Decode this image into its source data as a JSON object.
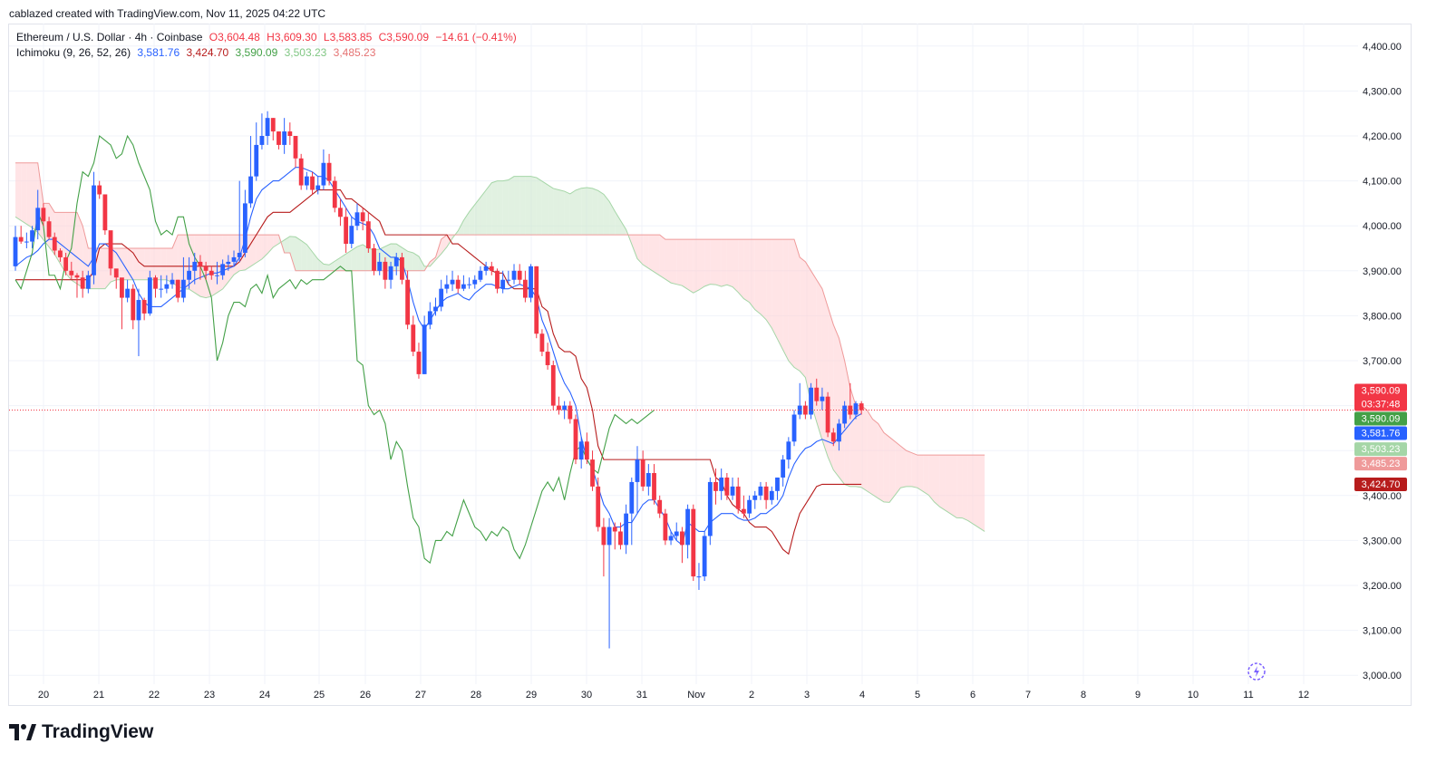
{
  "header": {
    "publish_line": "cablazed created with TradingView.com, Nov 11, 2025 04:22 UTC"
  },
  "legend": {
    "symbol": "Ethereum / U.S. Dollar · 4h · Coinbase",
    "open": "O3,604.48",
    "high": "H3,609.30",
    "low": "L3,583.85",
    "close": "C3,590.09",
    "change": "−14.61 (−0.41%)",
    "indicator": "Ichimoku (9, 26, 52, 26)",
    "conversion": "3,581.76",
    "base": "3,424.70",
    "lagging": "3,590.09",
    "span_a": "3,503.23",
    "span_b": "3,485.23"
  },
  "brand": {
    "name": "TradingView"
  },
  "colors": {
    "up": "#2962ff",
    "down": "#f23645",
    "conversion": "#2962ff",
    "base": "#b71c1c",
    "lagging": "#43a047",
    "span_a": "#a5d6a7",
    "span_b": "#ef9a9a",
    "cloud_bull": "#c8e6c9",
    "cloud_bear": "#ffcdd2"
  },
  "chart_data": {
    "type": "candlestick",
    "title": "Ethereum / U.S. Dollar · 4h · Coinbase",
    "ylim": [
      2950,
      4450
    ],
    "y_ticks": [
      3000,
      3100,
      3200,
      3300,
      3400,
      3500,
      3600,
      3700,
      3800,
      3900,
      4000,
      4100,
      4200,
      4300,
      4400
    ],
    "y_tick_labels": [
      "3,000.00",
      "3,100.00",
      "3,200.00",
      "3,300.00",
      "3,400.00",
      "3,500.00",
      "3,600.00",
      "3,700.00",
      "3,800.00",
      "3,900.00",
      "4,000.00",
      "4,100.00",
      "4,200.00",
      "4,300.00",
      "4,400.00"
    ],
    "x_labels": [
      "20",
      "21",
      "22",
      "23",
      "24",
      "25",
      "26",
      "27",
      "28",
      "29",
      "30",
      "31",
      "Nov",
      "2",
      "3",
      "4",
      "5",
      "6",
      "7",
      "8",
      "9",
      "10",
      "11",
      "12"
    ],
    "candle_open": [
      3910,
      3975,
      3965,
      3965,
      3990,
      4040,
      4010,
      3975,
      3945,
      3930,
      3900,
      3890,
      3885,
      3860,
      3890,
      4090,
      4070,
      3990,
      3905,
      3885,
      3840,
      3860,
      3790,
      3835,
      3805,
      3885,
      3860,
      3860,
      3870,
      3880,
      3840,
      3880,
      3900,
      3920,
      3910,
      3900,
      3890,
      3890,
      3915,
      3920,
      3930,
      3940,
      4050,
      4110,
      4180,
      4200,
      4240,
      4210,
      4180,
      4210,
      4200,
      4150,
      4090,
      4110,
      4080,
      4090,
      4140,
      4100,
      4040,
      4020,
      3960,
      4000,
      4030,
      4010,
      3950,
      3900,
      3920,
      3880,
      3910,
      3930,
      3880,
      3780,
      3720,
      3670,
      3780,
      3810,
      3820,
      3860,
      3870,
      3880,
      3860,
      3870,
      3870,
      3880,
      3900,
      3910,
      3900,
      3860,
      3880,
      3880,
      3900,
      3880,
      3840,
      3910,
      3760,
      3720,
      3690,
      3600,
      3590,
      3600,
      3570,
      3480,
      3520,
      3480,
      3420,
      3330,
      3290,
      3330,
      3320,
      3290,
      3360,
      3430,
      3480,
      3420,
      3450,
      3390,
      3360,
      3300,
      3310,
      3320,
      3290,
      3370,
      3220,
      3220,
      3310,
      3430,
      3410,
      3440,
      3400,
      3420,
      3370,
      3360,
      3390,
      3400,
      3420,
      3390,
      3410,
      3440,
      3480,
      3520,
      3580,
      3600,
      3580,
      3640,
      3610,
      3620,
      3540,
      3520,
      3560,
      3600,
      3580,
      3605
    ],
    "candle_close": [
      3975,
      3965,
      3965,
      3990,
      4040,
      4010,
      3975,
      3945,
      3930,
      3900,
      3890,
      3885,
      3860,
      3890,
      4090,
      4070,
      3990,
      3905,
      3885,
      3840,
      3860,
      3790,
      3835,
      3805,
      3885,
      3860,
      3860,
      3870,
      3880,
      3840,
      3880,
      3900,
      3920,
      3910,
      3900,
      3890,
      3890,
      3915,
      3920,
      3930,
      3940,
      4050,
      4110,
      4180,
      4200,
      4240,
      4210,
      4180,
      4210,
      4200,
      4150,
      4090,
      4110,
      4080,
      4090,
      4140,
      4100,
      4040,
      4020,
      3960,
      4000,
      4030,
      4010,
      3950,
      3900,
      3920,
      3880,
      3910,
      3930,
      3880,
      3780,
      3720,
      3670,
      3780,
      3810,
      3820,
      3860,
      3870,
      3880,
      3860,
      3870,
      3870,
      3880,
      3900,
      3910,
      3900,
      3860,
      3880,
      3880,
      3900,
      3880,
      3840,
      3910,
      3760,
      3720,
      3690,
      3600,
      3590,
      3600,
      3570,
      3480,
      3520,
      3480,
      3420,
      3330,
      3290,
      3330,
      3320,
      3290,
      3360,
      3430,
      3480,
      3420,
      3450,
      3390,
      3360,
      3300,
      3310,
      3320,
      3290,
      3370,
      3220,
      3220,
      3310,
      3430,
      3410,
      3440,
      3400,
      3420,
      3370,
      3360,
      3390,
      3400,
      3420,
      3390,
      3410,
      3440,
      3480,
      3520,
      3580,
      3600,
      3580,
      3640,
      3610,
      3620,
      3540,
      3520,
      3560,
      3600,
      3580,
      3605,
      3590
    ],
    "candle_high": [
      4000,
      4000,
      3985,
      4000,
      4080,
      4050,
      4020,
      3985,
      3950,
      3940,
      3920,
      3895,
      3900,
      3900,
      4120,
      4100,
      4000,
      3930,
      3900,
      3870,
      3880,
      3870,
      3860,
      3840,
      3900,
      3890,
      3890,
      3890,
      3895,
      3880,
      3930,
      3930,
      3940,
      3935,
      3920,
      3910,
      3920,
      3925,
      3935,
      3945,
      4100,
      4080,
      4200,
      4230,
      4250,
      4255,
      4240,
      4210,
      4240,
      4230,
      4200,
      4160,
      4120,
      4120,
      4110,
      4170,
      4160,
      4110,
      4060,
      4040,
      4020,
      4050,
      4040,
      4030,
      3960,
      3940,
      3930,
      3920,
      3940,
      3940,
      3900,
      3800,
      3740,
      3800,
      3830,
      3840,
      3880,
      3890,
      3900,
      3890,
      3890,
      3885,
      3890,
      3910,
      3920,
      3920,
      3905,
      3900,
      3900,
      3915,
      3915,
      3900,
      3915,
      3910,
      3770,
      3740,
      3700,
      3620,
      3610,
      3610,
      3580,
      3530,
      3540,
      3500,
      3440,
      3350,
      3350,
      3340,
      3340,
      3380,
      3440,
      3510,
      3500,
      3470,
      3470,
      3400,
      3370,
      3320,
      3340,
      3330,
      3380,
      3380,
      3250,
      3320,
      3440,
      3460,
      3460,
      3450,
      3440,
      3440,
      3400,
      3400,
      3410,
      3430,
      3430,
      3420,
      3440,
      3490,
      3530,
      3590,
      3650,
      3610,
      3650,
      3660,
      3640,
      3630,
      3550,
      3570,
      3610,
      3650,
      3610,
      3610
    ],
    "candle_low": [
      3900,
      3960,
      3950,
      3950,
      3970,
      4000,
      3970,
      3935,
      3920,
      3890,
      3880,
      3840,
      3840,
      3850,
      3870,
      4060,
      3980,
      3890,
      3860,
      3770,
      3830,
      3770,
      3710,
      3790,
      3800,
      3840,
      3840,
      3850,
      3860,
      3830,
      3830,
      3860,
      3870,
      3880,
      3880,
      3880,
      3870,
      3880,
      3900,
      3910,
      3920,
      3930,
      4040,
      4100,
      4170,
      4180,
      4190,
      4170,
      4160,
      4180,
      4130,
      4080,
      4080,
      4070,
      4070,
      4080,
      4090,
      4030,
      4000,
      3940,
      3950,
      3990,
      3990,
      3940,
      3890,
      3890,
      3860,
      3860,
      3890,
      3870,
      3770,
      3710,
      3660,
      3670,
      3770,
      3800,
      3810,
      3850,
      3855,
      3850,
      3855,
      3860,
      3860,
      3875,
      3890,
      3890,
      3850,
      3850,
      3870,
      3870,
      3870,
      3830,
      3830,
      3750,
      3710,
      3680,
      3590,
      3580,
      3570,
      3560,
      3470,
      3460,
      3470,
      3410,
      3320,
      3220,
      3060,
      3280,
      3280,
      3270,
      3290,
      3360,
      3410,
      3400,
      3380,
      3350,
      3290,
      3290,
      3300,
      3250,
      3260,
      3210,
      3190,
      3210,
      3290,
      3380,
      3390,
      3390,
      3390,
      3360,
      3350,
      3350,
      3370,
      3390,
      3370,
      3380,
      3390,
      3420,
      3460,
      3510,
      3570,
      3570,
      3570,
      3600,
      3590,
      3530,
      3510,
      3500,
      3550,
      3570,
      3570,
      3580
    ],
    "conversion_line": [
      3910,
      3920,
      3930,
      3935,
      3945,
      3960,
      3970,
      3970,
      3960,
      3950,
      3940,
      3930,
      3920,
      3910,
      3930,
      3960,
      3960,
      3950,
      3940,
      3920,
      3900,
      3880,
      3850,
      3830,
      3820,
      3820,
      3820,
      3830,
      3840,
      3850,
      3860,
      3870,
      3880,
      3885,
      3890,
      3895,
      3895,
      3900,
      3905,
      3910,
      3930,
      3970,
      4020,
      4060,
      4080,
      4090,
      4100,
      4100,
      4110,
      4120,
      4130,
      4130,
      4125,
      4120,
      4110,
      4110,
      4100,
      4080,
      4060,
      4040,
      4020,
      4010,
      4005,
      4000,
      3980,
      3950,
      3940,
      3930,
      3930,
      3920,
      3880,
      3830,
      3790,
      3770,
      3790,
      3810,
      3830,
      3840,
      3845,
      3850,
      3840,
      3835,
      3850,
      3860,
      3870,
      3870,
      3865,
      3860,
      3860,
      3865,
      3870,
      3865,
      3860,
      3840,
      3790,
      3760,
      3720,
      3680,
      3650,
      3630,
      3600,
      3530,
      3480,
      3460,
      3420,
      3380,
      3360,
      3330,
      3330,
      3340,
      3340,
      3360,
      3380,
      3390,
      3390,
      3370,
      3350,
      3320,
      3300,
      3290,
      3340,
      3330,
      3320,
      3320,
      3340,
      3350,
      3360,
      3360,
      3360,
      3350,
      3345,
      3345,
      3350,
      3360,
      3360,
      3370,
      3380,
      3400,
      3440,
      3470,
      3490,
      3505,
      3510,
      3520,
      3525,
      3520,
      3515,
      3530,
      3545,
      3560,
      3575,
      3582
    ],
    "base_line": [
      3880,
      3880,
      3880,
      3880,
      3880,
      3880,
      3880,
      3880,
      3880,
      3880,
      3880,
      3880,
      3880,
      3880,
      3900,
      3950,
      3960,
      3960,
      3960,
      3960,
      3950,
      3940,
      3920,
      3910,
      3910,
      3910,
      3910,
      3910,
      3910,
      3910,
      3910,
      3910,
      3910,
      3910,
      3910,
      3910,
      3910,
      3910,
      3910,
      3910,
      3920,
      3940,
      3960,
      3980,
      4000,
      4020,
      4030,
      4030,
      4030,
      4030,
      4040,
      4050,
      4060,
      4070,
      4080,
      4080,
      4080,
      4080,
      4080,
      4060,
      4060,
      4050,
      4040,
      4030,
      4020,
      4010,
      3980,
      3980,
      3980,
      3980,
      3980,
      3980,
      3980,
      3980,
      3980,
      3980,
      3980,
      3980,
      3960,
      3960,
      3950,
      3940,
      3930,
      3920,
      3910,
      3900,
      3895,
      3895,
      3870,
      3860,
      3860,
      3860,
      3860,
      3860,
      3820,
      3810,
      3760,
      3730,
      3720,
      3720,
      3710,
      3660,
      3640,
      3590,
      3510,
      3480,
      3480,
      3480,
      3480,
      3480,
      3480,
      3480,
      3480,
      3480,
      3480,
      3480,
      3480,
      3480,
      3480,
      3480,
      3480,
      3480,
      3480,
      3480,
      3480,
      3440,
      3430,
      3400,
      3380,
      3370,
      3360,
      3340,
      3330,
      3330,
      3330,
      3320,
      3300,
      3280,
      3270,
      3320,
      3360,
      3380,
      3400,
      3420,
      3425,
      3425,
      3425,
      3425,
      3425,
      3425,
      3425,
      3425
    ],
    "lagging_line": [
      3880,
      3860,
      3900,
      3940,
      4030,
      4000,
      3890,
      3890,
      3860,
      3920,
      3950,
      4050,
      4120,
      4110,
      4140,
      4200,
      4190,
      4180,
      4150,
      4160,
      4200,
      4180,
      4140,
      4110,
      4080,
      4010,
      3980,
      3990,
      3980,
      4020,
      4020,
      3960,
      3930,
      3910,
      3880,
      3840,
      3700,
      3740,
      3800,
      3830,
      3830,
      3820,
      3860,
      3870,
      3850,
      3890,
      3840,
      3860,
      3870,
      3880,
      3860,
      3880,
      3870,
      3880,
      3880,
      3880,
      3890,
      3900,
      3910,
      3900,
      3900,
      3700,
      3690,
      3600,
      3580,
      3590,
      3560,
      3480,
      3520,
      3500,
      3420,
      3350,
      3330,
      3260,
      3250,
      3300,
      3300,
      3320,
      3310,
      3350,
      3390,
      3360,
      3330,
      3320,
      3300,
      3320,
      3310,
      3330,
      3320,
      3280,
      3260,
      3290,
      3330,
      3370,
      3410,
      3430,
      3410,
      3440,
      3390,
      3450,
      3500,
      3510,
      3480,
      3460,
      3450,
      3500,
      3550,
      3580,
      3570,
      3560,
      3570,
      3560,
      3570,
      3580,
      3590
    ],
    "cloud_span_a": [
      4020,
      4010,
      4000,
      3990,
      3970,
      3950,
      3930,
      3900,
      3880,
      3870,
      3860,
      3860,
      3860,
      3860,
      3880,
      3880,
      3880,
      3880,
      3880,
      3880,
      3880,
      3880,
      3880,
      3870,
      3860,
      3860,
      3850,
      3840,
      3840,
      3850,
      3860,
      3880,
      3900,
      3900,
      3910,
      3920,
      3930,
      3950,
      3960,
      3970,
      3980,
      3970,
      3960,
      3940,
      3920,
      3910,
      3920,
      3930,
      3940,
      3950,
      3960,
      3950,
      3945,
      3950,
      3960,
      3960,
      3950,
      3940,
      3940,
      3910,
      3910,
      3930,
      3945,
      3970,
      3990,
      4020,
      4040,
      4060,
      4080,
      4100,
      4100,
      4100,
      4110,
      4110,
      4110,
      4110,
      4100,
      4090,
      4080,
      4080,
      4070,
      4080,
      4085,
      4085,
      4080,
      4070,
      4050,
      4020,
      4000,
      3960,
      3920,
      3910,
      3900,
      3890,
      3880,
      3870,
      3870,
      3860,
      3850,
      3860,
      3870,
      3870,
      3865,
      3870,
      3860,
      3840,
      3830,
      3810,
      3800,
      3780,
      3750,
      3720,
      3690,
      3680,
      3670,
      3600,
      3550,
      3500,
      3460,
      3440,
      3420,
      3420,
      3420,
      3410,
      3400,
      3390,
      3380,
      3400,
      3420,
      3420,
      3420,
      3410,
      3400,
      3380,
      3370,
      3360,
      3350,
      3350,
      3340,
      3330,
      3320
    ],
    "cloud_span_b": [
      4140,
      4140,
      4140,
      4140,
      4140,
      4050,
      4050,
      4030,
      4030,
      4030,
      4030,
      4030,
      4000,
      3950,
      3950,
      3950,
      3950,
      3950,
      3950,
      3950,
      3950,
      3950,
      3950,
      3950,
      3950,
      3950,
      3950,
      3950,
      3950,
      3980,
      3980,
      3980,
      3980,
      3980,
      3980,
      3980,
      3980,
      3980,
      3980,
      3980,
      3980,
      3980,
      3980,
      3980,
      3980,
      3980,
      3980,
      3980,
      3940,
      3940,
      3900,
      3900,
      3900,
      3900,
      3900,
      3900,
      3900,
      3900,
      3900,
      3900,
      3900,
      3900,
      3900,
      3900,
      3900,
      3900,
      3900,
      3900,
      3900,
      3900,
      3900,
      3900,
      3900,
      3900,
      3920,
      3930,
      3970,
      3980,
      3980,
      3980,
      3980,
      3980,
      3980,
      3980,
      3980,
      3980,
      3980,
      3980,
      3980,
      3980,
      3980,
      3980,
      3980,
      3980,
      3980,
      3980,
      3980,
      3980,
      3980,
      3980,
      3980,
      3980,
      3980,
      3980,
      3980,
      3980,
      3980,
      3980,
      3980,
      3980,
      3980,
      3980,
      3980,
      3980,
      3980,
      3980,
      3970,
      3970,
      3970,
      3970,
      3970,
      3970,
      3970,
      3970,
      3970,
      3970,
      3970,
      3970,
      3970,
      3970,
      3970,
      3970,
      3970,
      3970,
      3970,
      3970,
      3970,
      3970,
      3970,
      3970,
      3930,
      3920,
      3900,
      3880,
      3860,
      3820,
      3780,
      3750,
      3700,
      3640,
      3600,
      3600,
      3590,
      3570,
      3560,
      3540,
      3530,
      3520,
      3510,
      3500,
      3495,
      3490,
      3490,
      3490,
      3490,
      3490,
      3490,
      3490,
      3490,
      3490,
      3490,
      3490,
      3490,
      3490
    ],
    "current_price": 3590.09,
    "countdown": "03:37:48",
    "price_tags": [
      {
        "label": "3,590.09",
        "value": 3590.09,
        "kind": "close",
        "color": "#f23645"
      },
      {
        "label": "3,590.09",
        "value": 3590.09,
        "kind": "lagging",
        "color": "#43a047"
      },
      {
        "label": "3,581.76",
        "value": 3581.76,
        "kind": "conversion",
        "color": "#2962ff"
      },
      {
        "label": "3,503.23",
        "value": 3503.23,
        "kind": "span_a",
        "color": "#a5d6a7"
      },
      {
        "label": "3,485.23",
        "value": 3485.23,
        "kind": "span_b",
        "color": "#ef9a9a"
      },
      {
        "label": "3,424.70",
        "value": 3424.7,
        "kind": "base",
        "color": "#b71c1c"
      }
    ]
  }
}
